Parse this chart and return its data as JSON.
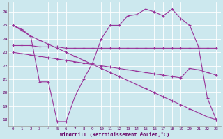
{
  "xlabel": "Windchill (Refroidissement éolien,°C)",
  "background_color": "#cce8ee",
  "line_color": "#993399",
  "grid_color": "#b8d8e0",
  "x_ticks": [
    0,
    1,
    2,
    3,
    4,
    5,
    6,
    7,
    8,
    9,
    10,
    11,
    12,
    13,
    14,
    15,
    16,
    17,
    18,
    19,
    20,
    21,
    22,
    23
  ],
  "ylim": [
    17.5,
    26.7
  ],
  "y_ticks": [
    18,
    19,
    20,
    21,
    22,
    23,
    24,
    25,
    26
  ],
  "series1_x": [
    0,
    1,
    2,
    3,
    4,
    5,
    6,
    7,
    8,
    9,
    10,
    11,
    12,
    13,
    14,
    15,
    16,
    17,
    18,
    19,
    20,
    21,
    22,
    23
  ],
  "series1_y": [
    25.0,
    24.7,
    24.2,
    23.9,
    23.6,
    23.3,
    23.0,
    22.7,
    22.4,
    22.1,
    21.8,
    21.5,
    21.2,
    20.9,
    20.6,
    20.3,
    20.0,
    19.7,
    19.4,
    19.1,
    18.8,
    18.5,
    18.2,
    18.0
  ],
  "series2_x": [
    0,
    1,
    2,
    3,
    4,
    5,
    6,
    7,
    8,
    9,
    10,
    11,
    12,
    13,
    14,
    15,
    16,
    17,
    18,
    19,
    20,
    21,
    22,
    23
  ],
  "series2_y": [
    23.5,
    23.5,
    23.5,
    23.4,
    23.4,
    23.4,
    23.3,
    23.3,
    23.3,
    23.3,
    23.3,
    23.3,
    23.3,
    23.3,
    23.3,
    23.3,
    23.3,
    23.3,
    23.3,
    23.3,
    23.3,
    23.3,
    23.3,
    23.3
  ],
  "series3_x": [
    0,
    1,
    2,
    3,
    4,
    5,
    6,
    7,
    8,
    9,
    10,
    11,
    12,
    13,
    14,
    15,
    16,
    17,
    18,
    19,
    20,
    21,
    22,
    23
  ],
  "series3_y": [
    23.0,
    22.9,
    22.8,
    22.7,
    22.6,
    22.5,
    22.4,
    22.3,
    22.2,
    22.1,
    22.0,
    21.9,
    21.8,
    21.7,
    21.6,
    21.5,
    21.4,
    21.3,
    21.2,
    21.1,
    21.8,
    21.7,
    21.5,
    21.3
  ],
  "series4_x": [
    0,
    1,
    2,
    3,
    4,
    5,
    6,
    7,
    8,
    9,
    10,
    11,
    12,
    13,
    14,
    15,
    16,
    17,
    18,
    19,
    20,
    21,
    22,
    23
  ],
  "series4_y": [
    25.0,
    24.6,
    24.2,
    20.8,
    20.8,
    17.85,
    17.85,
    19.7,
    21.0,
    22.2,
    24.0,
    25.0,
    25.0,
    25.7,
    25.8,
    26.2,
    26.0,
    25.7,
    26.2,
    25.5,
    25.0,
    23.4,
    19.6,
    18.0
  ]
}
